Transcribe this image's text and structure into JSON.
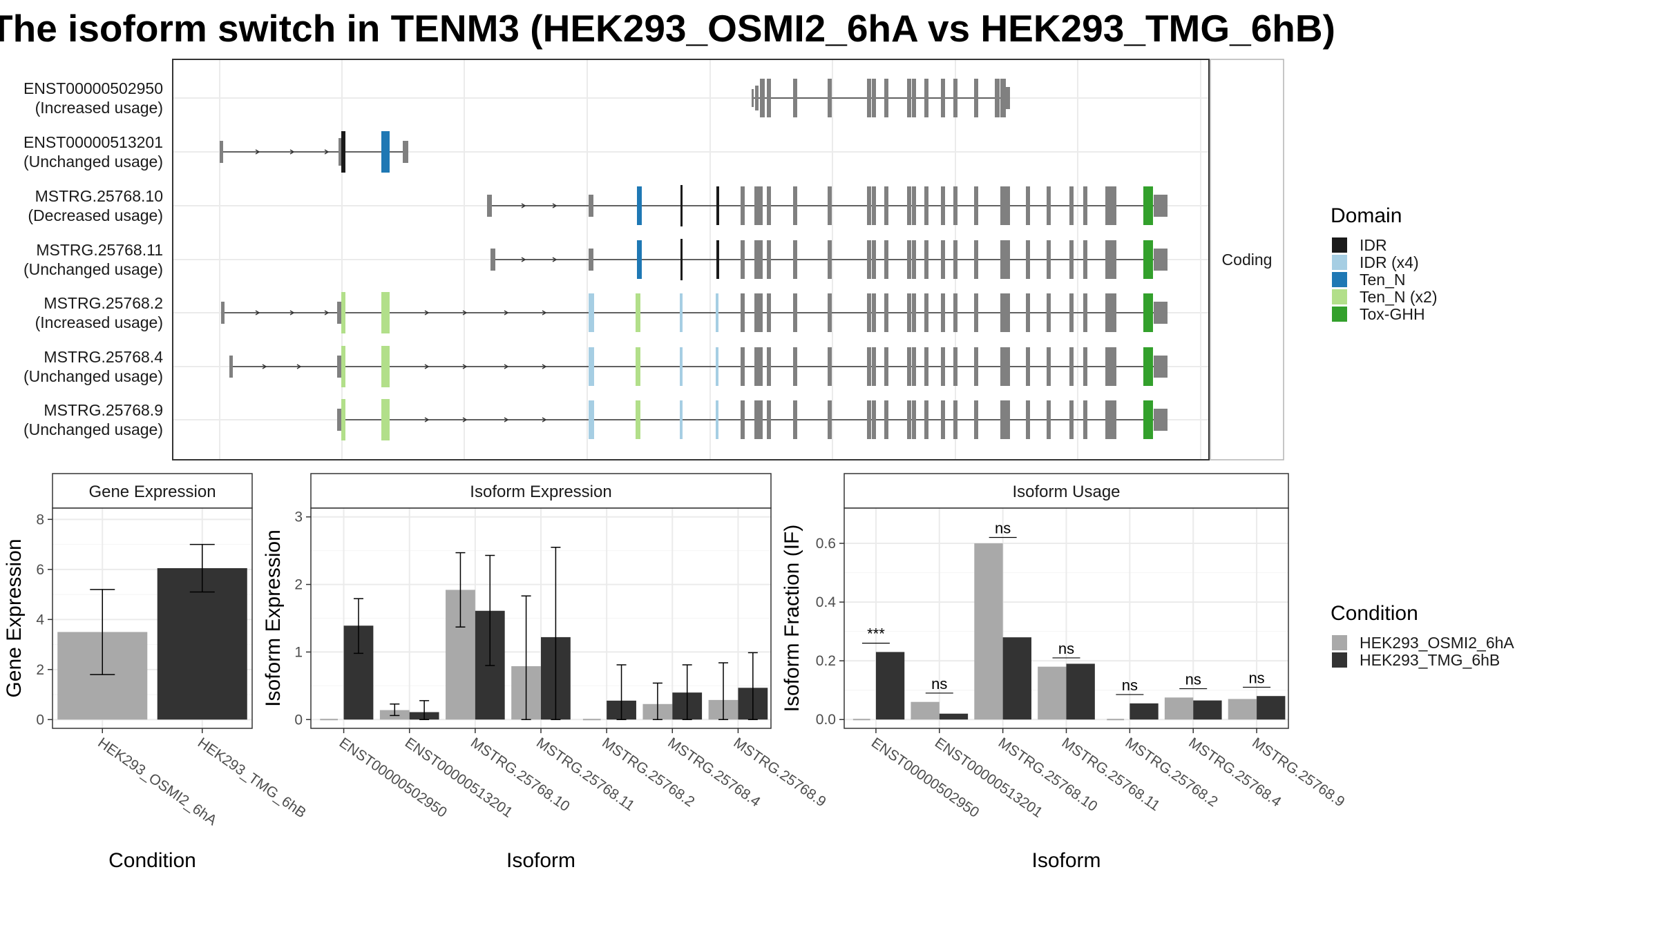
{
  "title": "The isoform switch in TENM3 (HEK293_OSMI2_6hA vs HEK293_TMG_6hB)",
  "colors": {
    "cond1": "#a9a9a9",
    "cond2": "#333333",
    "exon": "#808080",
    "grid": "#ebebeb",
    "IDR": "#1a1a1a",
    "IDR_x4": "#a6cee3",
    "Ten_N": "#1f78b4",
    "Ten_N_x2": "#b2df8a",
    "Tox_GHH": "#33a02c"
  },
  "structure": {
    "facet_label": "Coding",
    "isoforms": [
      {
        "id": "ENST00000502950",
        "usage": "(Increased usage)"
      },
      {
        "id": "ENST00000513201",
        "usage": "(Unchanged usage)"
      },
      {
        "id": "MSTRG.25768.10",
        "usage": "(Decreased usage)"
      },
      {
        "id": "MSTRG.25768.11",
        "usage": "(Unchanged usage)"
      },
      {
        "id": "MSTRG.25768.2",
        "usage": "(Increased usage)"
      },
      {
        "id": "MSTRG.25768.4",
        "usage": "(Unchanged usage)"
      },
      {
        "id": "MSTRG.25768.9",
        "usage": "(Unchanged usage)"
      }
    ]
  },
  "legend_domain": {
    "title": "Domain",
    "items": [
      {
        "label": "IDR",
        "color": "#1a1a1a"
      },
      {
        "label": "IDR (x4)",
        "color": "#a6cee3"
      },
      {
        "label": "Ten_N",
        "color": "#1f78b4"
      },
      {
        "label": "Ten_N (x2)",
        "color": "#b2df8a"
      },
      {
        "label": "Tox-GHH",
        "color": "#33a02c"
      }
    ]
  },
  "legend_condition": {
    "title": "Condition",
    "items": [
      {
        "label": "HEK293_OSMI2_6hA",
        "color": "#a9a9a9"
      },
      {
        "label": "HEK293_TMG_6hB",
        "color": "#333333"
      }
    ]
  },
  "chart_data": [
    {
      "type": "bar",
      "title": "Gene Expression",
      "xlabel": "Condition",
      "ylabel": "Gene Expression",
      "categories": [
        "HEK293_OSMI2_6hA",
        "HEK293_TMG_6hB"
      ],
      "values": [
        3.5,
        6.05
      ],
      "err_low": [
        1.8,
        5.1
      ],
      "err_high": [
        5.2,
        7.0
      ],
      "ylim": [
        -0.35,
        8.45
      ],
      "yticks": [
        0,
        2,
        4,
        6,
        8
      ]
    },
    {
      "type": "bar",
      "title": "Isoform Expression",
      "xlabel": "Isoform",
      "ylabel": "Isoform Expression",
      "categories": [
        "ENST00000502950",
        "ENST00000513201",
        "MSTRG.25768.10",
        "MSTRG.25768.11",
        "MSTRG.25768.2",
        "MSTRG.25768.4",
        "MSTRG.25768.9"
      ],
      "series": [
        {
          "name": "HEK293_OSMI2_6hA",
          "values": [
            0.0,
            0.14,
            1.92,
            0.79,
            0.0,
            0.23,
            0.29
          ],
          "err_low": [
            0.0,
            0.06,
            1.37,
            0.0,
            0.0,
            0.0,
            0.0
          ],
          "err_high": [
            0.0,
            0.23,
            2.47,
            1.83,
            0.0,
            0.54,
            0.84
          ]
        },
        {
          "name": "HEK293_TMG_6hB",
          "values": [
            1.39,
            0.11,
            1.61,
            1.22,
            0.28,
            0.4,
            0.47
          ],
          "err_low": [
            0.98,
            0.0,
            0.8,
            0.0,
            0.0,
            0.0,
            0.0
          ],
          "err_high": [
            1.79,
            0.28,
            2.43,
            2.55,
            0.81,
            0.81,
            0.99
          ]
        }
      ],
      "ylim": [
        -0.13,
        3.13
      ],
      "yticks": [
        0,
        1,
        2,
        3
      ]
    },
    {
      "type": "bar",
      "title": "Isoform Usage",
      "xlabel": "Isoform",
      "ylabel": "Isoform Fraction (IF)",
      "categories": [
        "ENST00000502950",
        "ENST00000513201",
        "MSTRG.25768.10",
        "MSTRG.25768.11",
        "MSTRG.25768.2",
        "MSTRG.25768.4",
        "MSTRG.25768.9"
      ],
      "series": [
        {
          "name": "HEK293_OSMI2_6hA",
          "values": [
            0.0,
            0.06,
            0.6,
            0.18,
            0.0,
            0.075,
            0.07
          ]
        },
        {
          "name": "HEK293_TMG_6hB",
          "values": [
            0.23,
            0.02,
            0.28,
            0.19,
            0.055,
            0.065,
            0.08
          ]
        }
      ],
      "significance": [
        "***",
        "ns",
        "ns",
        "ns",
        "ns",
        "ns",
        "ns"
      ],
      "sig_level": [
        0.26,
        0.09,
        0.62,
        0.21,
        0.085,
        0.105,
        0.11
      ],
      "ylim": [
        -0.03,
        0.72
      ],
      "yticks": [
        0.0,
        0.2,
        0.4,
        0.6
      ],
      "ytick_labels": [
        "0.0",
        "0.2",
        "0.4",
        "0.6"
      ]
    }
  ]
}
